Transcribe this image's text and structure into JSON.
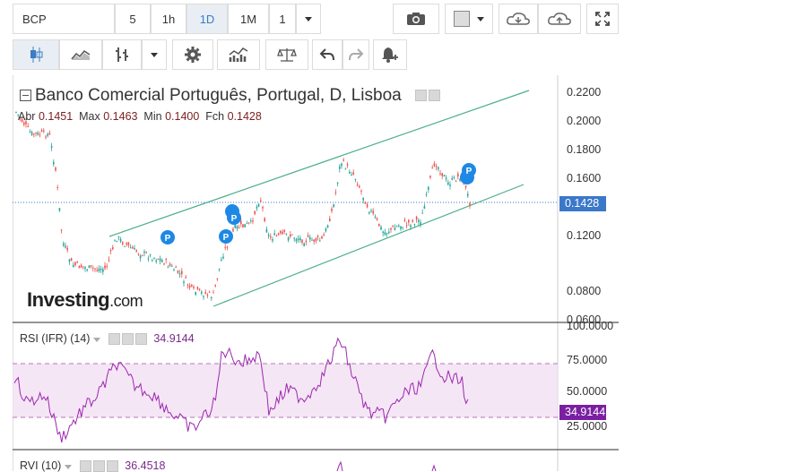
{
  "toolbar": {
    "symbol": "BCP",
    "intervals": [
      "5",
      "1h",
      "1D",
      "1M"
    ],
    "active_interval": "1D",
    "count_value": "1"
  },
  "chart": {
    "title": "Banco Comercial Português, Portugal, D, Lisboa",
    "ohlc": {
      "open_label": "Abr",
      "open": "0.1451",
      "high_label": "Max",
      "high": "0.1463",
      "low_label": "Min",
      "low": "0.1400",
      "close_label": "Fch",
      "close": "0.1428"
    },
    "logo_main": "Investing",
    "logo_suffix": ".com",
    "price_axis": [
      "0.2200",
      "0.2000",
      "0.1800",
      "0.1600",
      "0.1428",
      "0.1200",
      "0.0800",
      "0.0600"
    ],
    "last_price": "0.1428",
    "colors": {
      "up": "#26a69a",
      "down": "#ef5350",
      "channel": "#4caf8a",
      "rsi": "#9c27b0",
      "tag_blue": "#3b78c8",
      "tag_purple": "#7b1fa2"
    }
  },
  "rsi": {
    "label": "RSI (IFR) (14)",
    "value": "34.9144",
    "axis": [
      "100.0000",
      "75.0000",
      "50.0000",
      "34.9144",
      "25.0000"
    ]
  },
  "rvi": {
    "label": "RVI (10)",
    "value": "36.4518"
  }
}
